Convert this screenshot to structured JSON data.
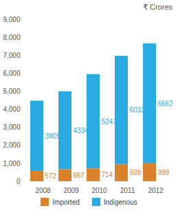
{
  "chart_data": {
    "type": "bar",
    "stacked": true,
    "data_labels": true,
    "grid": false,
    "y_label": "₹ Crores",
    "categories": [
      "2008",
      "2009",
      "2010",
      "2011",
      "2012"
    ],
    "series": [
      {
        "name": "Imported",
        "color": "#d9822b",
        "values": [
          572,
          667,
          714,
          939,
          999
        ]
      },
      {
        "name": "Indigenous",
        "color": "#29abe2",
        "values": [
          3905,
          4334,
          5241,
          6033,
          6662
        ]
      }
    ],
    "ylim": [
      0,
      9000
    ],
    "yticks": [
      0,
      1000,
      2000,
      3000,
      4000,
      5000,
      6000,
      7000,
      8000,
      9000
    ],
    "legend": "bottom"
  }
}
